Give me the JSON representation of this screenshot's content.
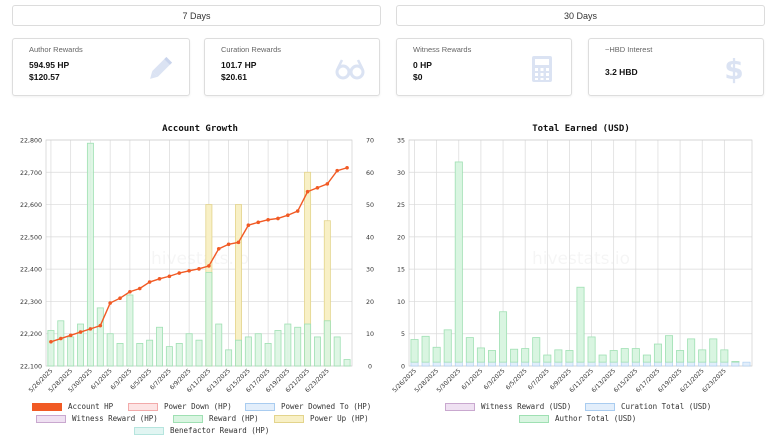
{
  "periods": {
    "week": "7 Days",
    "month": "30 Days"
  },
  "cards": [
    {
      "title": "Author Rewards",
      "value1": "594.95 HP",
      "value2": "$120.57",
      "icon": "pencil-icon"
    },
    {
      "title": "Curation Rewards",
      "value1": "101.7 HP",
      "value2": "$20.61",
      "icon": "glasses-icon"
    },
    {
      "title": "Witness Rewards",
      "value1": "0 HP",
      "value2": "$0",
      "icon": "calculator-icon"
    },
    {
      "title": "~HBD Interest",
      "value1": "3.2 HBD",
      "value2": "",
      "icon": "dollar-icon"
    }
  ],
  "colors": {
    "icon": "#dbe3f3",
    "line": "#f15a24",
    "reward_green": "#b5ecc6",
    "power_up": "#f5e9b0",
    "grid": "#d9d9d9"
  },
  "chart_data": [
    {
      "type": "bar",
      "title": "Account Growth",
      "watermark": "hivestats.io",
      "x_tick_labels": [
        "5/26/2025",
        "5/28/2025",
        "5/30/2025",
        "6/1/2025",
        "6/3/2025",
        "6/5/2025",
        "6/7/2025",
        "6/9/2025",
        "6/11/2025",
        "6/13/2025",
        "6/15/2025",
        "6/17/2025",
        "6/19/2025",
        "6/21/2025",
        "6/23/2025"
      ],
      "y_left": {
        "min": 22100,
        "max": 22800,
        "ticks": [
          "22,100",
          "22,200",
          "22,300",
          "22,400",
          "22,500",
          "22,600",
          "22,700",
          "22,800"
        ]
      },
      "y_right": {
        "min": 0,
        "max": 70,
        "ticks": [
          "0",
          "10",
          "20",
          "30",
          "40",
          "50",
          "60",
          "70"
        ]
      },
      "n_days": 30,
      "series": [
        {
          "name": "Account HP",
          "kind": "line",
          "axis": "left",
          "values": [
            22175,
            22185,
            22195,
            22205,
            22215,
            22225,
            22295,
            22310,
            22330,
            22340,
            22360,
            22370,
            22378,
            22388,
            22395,
            22401,
            22410,
            22463,
            22477,
            22483,
            22536,
            22545,
            22553,
            22557,
            22567,
            22580,
            22640,
            22652,
            22664,
            22705,
            22714
          ]
        },
        {
          "name": "Power Down (HP)",
          "kind": "bar",
          "axis": "right",
          "values": []
        },
        {
          "name": "Power Downed To (HP)",
          "kind": "bar",
          "axis": "right",
          "values": []
        },
        {
          "name": "Witness Reward (HP)",
          "kind": "bar",
          "axis": "right",
          "values": []
        },
        {
          "name": "Reward (HP)",
          "kind": "bar",
          "axis": "right",
          "values": [
            11,
            14,
            9,
            13,
            69,
            18,
            10,
            7,
            22,
            7,
            8,
            12,
            6,
            7,
            10,
            8,
            29,
            13,
            5,
            8,
            9,
            10,
            7,
            11,
            13,
            12,
            13,
            9,
            14,
            9,
            2
          ]
        },
        {
          "name": "Power Up (HP)",
          "kind": "bar",
          "axis": "right",
          "values": [
            0,
            0,
            0,
            0,
            0,
            0,
            0,
            0,
            0,
            0,
            0,
            0,
            0,
            0,
            0,
            0,
            50,
            0,
            0,
            50,
            0,
            0,
            0,
            0,
            0,
            0,
            60,
            0,
            45,
            0,
            0
          ]
        },
        {
          "name": "Benefactor Reward (HP)",
          "kind": "bar",
          "axis": "right",
          "values": []
        }
      ]
    },
    {
      "type": "bar",
      "title": "Total Earned (USD)",
      "watermark": "hivestats.io",
      "x_tick_labels": [
        "5/26/2025",
        "5/28/2025",
        "5/30/2025",
        "6/1/2025",
        "6/3/2025",
        "6/5/2025",
        "6/7/2025",
        "6/9/2025",
        "6/11/2025",
        "6/13/2025",
        "6/15/2025",
        "6/17/2025",
        "6/19/2025",
        "6/21/2025",
        "6/23/2025"
      ],
      "y": {
        "min": 0,
        "max": 35,
        "ticks": [
          "0",
          "5",
          "10",
          "15",
          "20",
          "25",
          "30",
          "35"
        ]
      },
      "n_days": 30,
      "series": [
        {
          "name": "Witness Reward (USD)",
          "values": []
        },
        {
          "name": "Curation Total (USD)",
          "values": [
            0.6,
            0.6,
            0.6,
            0.6,
            0.6,
            0.6,
            0.6,
            0.6,
            0.6,
            0.6,
            0.6,
            0.6,
            0.6,
            0.6,
            0.6,
            0.6,
            0.6,
            0.6,
            0.6,
            0.6,
            0.6,
            0.6,
            0.6,
            0.6,
            0.6,
            0.6,
            0.6,
            0.6,
            0.6,
            0.6,
            0.6
          ]
        },
        {
          "name": "Author Total (USD)",
          "values": [
            3.5,
            4,
            2.3,
            5,
            31,
            3.8,
            2.2,
            1.8,
            7.8,
            2,
            2.1,
            3.8,
            1.1,
            1.9,
            1.8,
            11.6,
            3.9,
            1.1,
            1.8,
            2.1,
            2.1,
            1.1,
            2.8,
            4.1,
            1.8,
            3.6,
            1.9,
            3.6,
            1.9,
            0.1,
            0
          ]
        }
      ]
    }
  ]
}
